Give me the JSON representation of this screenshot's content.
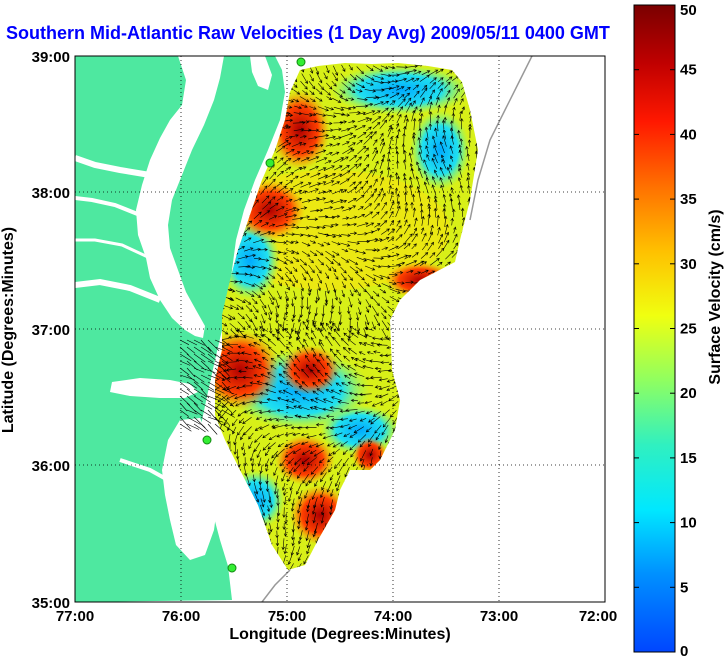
{
  "title": "Southern Mid-Atlantic Raw Velocities (1 Day Avg) 2009/05/11 0400 GMT",
  "xaxis": {
    "label": "Longitude (Degrees:Minutes)",
    "ticks": [
      "77:00",
      "76:00",
      "75:00",
      "74:00",
      "73:00",
      "72:00"
    ]
  },
  "yaxis": {
    "label": "Latitude (Degrees:Minutes)",
    "ticks": [
      "35:00",
      "36:00",
      "37:00",
      "38:00",
      "39:00"
    ]
  },
  "colorbar": {
    "label": "Surface Velocity (cm/s)",
    "ticks": [
      "0",
      "5",
      "10",
      "15",
      "20",
      "25",
      "30",
      "35",
      "40",
      "45",
      "50"
    ],
    "min": 0,
    "max": 50
  },
  "colors": {
    "land": "#4ee8a0",
    "water": "#ffffff",
    "title": "#0000ff",
    "station": "#33ee33"
  }
}
